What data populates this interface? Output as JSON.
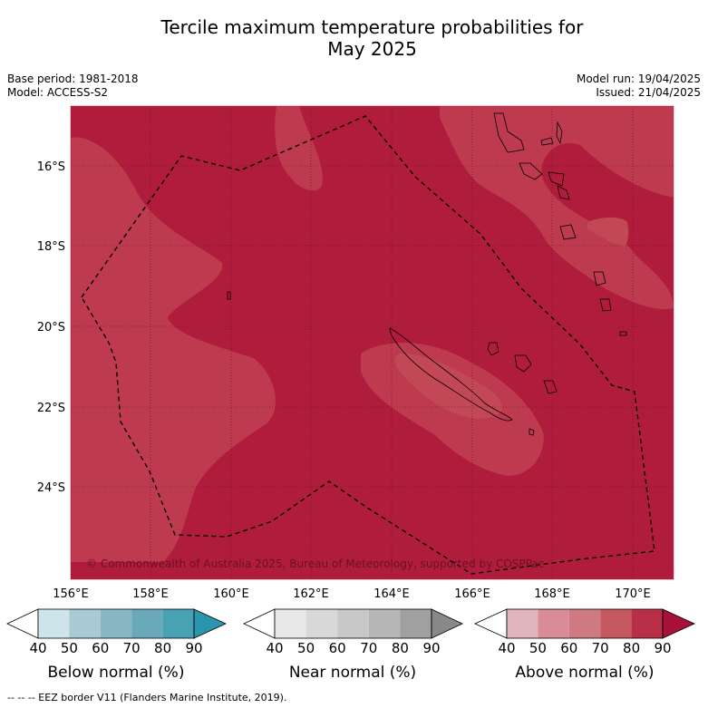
{
  "title_line1": "Tercile maximum temperature probabilities for",
  "title_line2": "May 2025",
  "base_period": "Base period: 1981-2018",
  "model": "Model: ACCESS-S2",
  "model_run": "Model run: 19/04/2025",
  "issued": "Issued: 21/04/2025",
  "copyright": "© Commonwealth of Australia 2025, Bureau of Meteorology, supported by COSPPac",
  "footer": "--  --  -- EEZ border V11 (Flanders Marine Institute, 2019).",
  "lat_labels": [
    "16°S",
    "18°S",
    "20°S",
    "22°S",
    "24°S"
  ],
  "lon_labels": [
    "156°E",
    "158°E",
    "160°E",
    "162°E",
    "164°E",
    "166°E",
    "168°E",
    "170°E"
  ],
  "colorbars": [
    {
      "title": "Below normal (%)",
      "ticks": [
        "40",
        "50",
        "60",
        "70",
        "80",
        "90"
      ],
      "colors": [
        "#ffffff",
        "#cde4ea",
        "#a8cad3",
        "#88b7c4",
        "#6aa9b9",
        "#48a2b4",
        "#2b95ad"
      ]
    },
    {
      "title": "Near normal (%)",
      "ticks": [
        "40",
        "50",
        "60",
        "70",
        "80",
        "90"
      ],
      "colors": [
        "#ffffff",
        "#e8e8e8",
        "#d8d8d8",
        "#c8c8c8",
        "#b6b6b6",
        "#a0a0a0",
        "#888888"
      ]
    },
    {
      "title": "Above normal (%)",
      "ticks": [
        "40",
        "50",
        "60",
        "70",
        "80",
        "90"
      ],
      "colors": [
        "#ffffff",
        "#e1b5bd",
        "#d98c98",
        "#cf7a83",
        "#c4575f",
        "#b92f47",
        "#a8123a"
      ]
    }
  ],
  "fill_colors": {
    "dominant": "#b01c3c",
    "lighter": "#bd3a4f",
    "lightest": "#c24856"
  }
}
